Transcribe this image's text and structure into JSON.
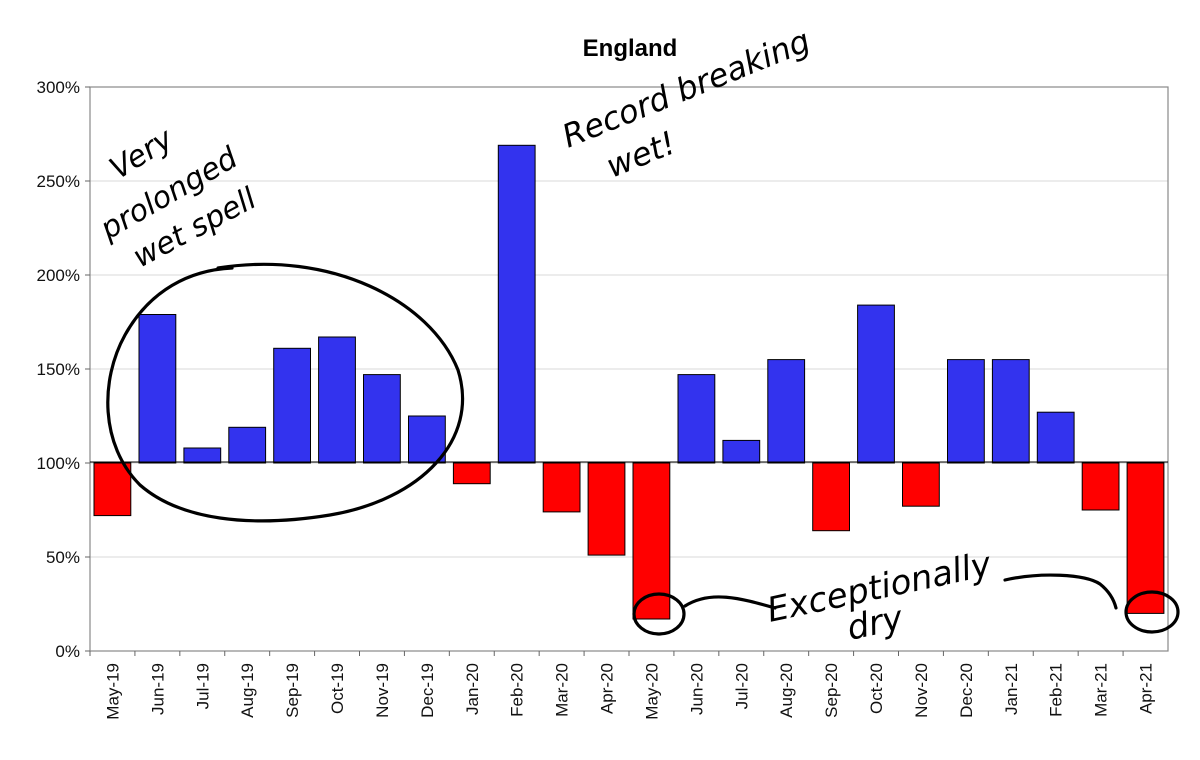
{
  "chart_data": {
    "type": "bar",
    "title": "England",
    "xlabel": "",
    "ylabel": "",
    "baseline": 100,
    "ylim": [
      0,
      300
    ],
    "yticks": [
      0,
      50,
      100,
      150,
      200,
      250,
      300
    ],
    "ytick_labels": [
      "0%",
      "50%",
      "100%",
      "150%",
      "200%",
      "250%",
      "300%"
    ],
    "categories": [
      "May-19",
      "Jun-19",
      "Jul-19",
      "Aug-19",
      "Sep-19",
      "Oct-19",
      "Nov-19",
      "Dec-19",
      "Jan-20",
      "Feb-20",
      "Mar-20",
      "Apr-20",
      "May-20",
      "Jun-20",
      "Jul-20",
      "Aug-20",
      "Sep-20",
      "Oct-20",
      "Nov-20",
      "Dec-20",
      "Jan-21",
      "Feb-21",
      "Mar-21",
      "Apr-21"
    ],
    "values": [
      72,
      179,
      108,
      119,
      161,
      167,
      147,
      125,
      89,
      269,
      74,
      51,
      17,
      147,
      112,
      155,
      64,
      184,
      77,
      155,
      155,
      127,
      75,
      20
    ],
    "colors": {
      "above": "#3333ee",
      "below": "#ff0000"
    },
    "grid": true,
    "legend": "none",
    "annotations": [
      {
        "text_lines": [
          "Very",
          "prolonged",
          "wet spell"
        ]
      },
      {
        "text_lines": [
          "Record breaking",
          "wet!"
        ]
      },
      {
        "text_lines": [
          "Exceptionally",
          "dry"
        ]
      }
    ]
  }
}
